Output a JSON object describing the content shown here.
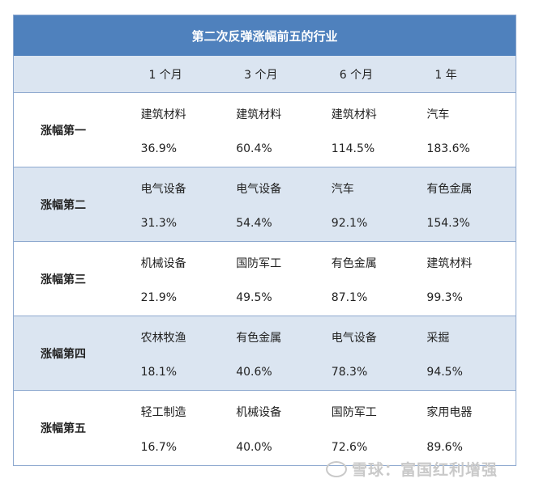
{
  "title": "第二次反弹涨幅前五的行业",
  "periods": [
    "1 个月",
    "3 个月",
    "6 个月",
    "1 年"
  ],
  "rows": [
    {
      "rank": "涨幅第一",
      "cells": [
        {
          "industry": "建筑材料",
          "value": "36.9%"
        },
        {
          "industry": "建筑材料",
          "value": "60.4%"
        },
        {
          "industry": "建筑材料",
          "value": "114.5%"
        },
        {
          "industry": "汽车",
          "value": "183.6%"
        }
      ]
    },
    {
      "rank": "涨幅第二",
      "cells": [
        {
          "industry": "电气设备",
          "value": "31.3%"
        },
        {
          "industry": "电气设备",
          "value": "54.4%"
        },
        {
          "industry": "汽车",
          "value": "92.1%"
        },
        {
          "industry": "有色金属",
          "value": "154.3%"
        }
      ]
    },
    {
      "rank": "涨幅第三",
      "cells": [
        {
          "industry": "机械设备",
          "value": "21.9%"
        },
        {
          "industry": "国防军工",
          "value": "49.5%"
        },
        {
          "industry": "有色金属",
          "value": "87.1%"
        },
        {
          "industry": "建筑材料",
          "value": "99.3%"
        }
      ]
    },
    {
      "rank": "涨幅第四",
      "cells": [
        {
          "industry": "农林牧渔",
          "value": "18.1%"
        },
        {
          "industry": "有色金属",
          "value": "40.6%"
        },
        {
          "industry": "电气设备",
          "value": "78.3%"
        },
        {
          "industry": "采掘",
          "value": "94.5%"
        }
      ]
    },
    {
      "rank": "涨幅第五",
      "cells": [
        {
          "industry": "轻工制造",
          "value": "16.7%"
        },
        {
          "industry": "机械设备",
          "value": "40.0%"
        },
        {
          "industry": "国防军工",
          "value": "72.6%"
        },
        {
          "industry": "家用电器",
          "value": "89.6%"
        }
      ]
    }
  ],
  "watermark": "雪球：富国红利增强",
  "colors": {
    "title_bg": "#4f81bd",
    "shade": "#dbe5f1",
    "border": "#8ea9cf"
  }
}
